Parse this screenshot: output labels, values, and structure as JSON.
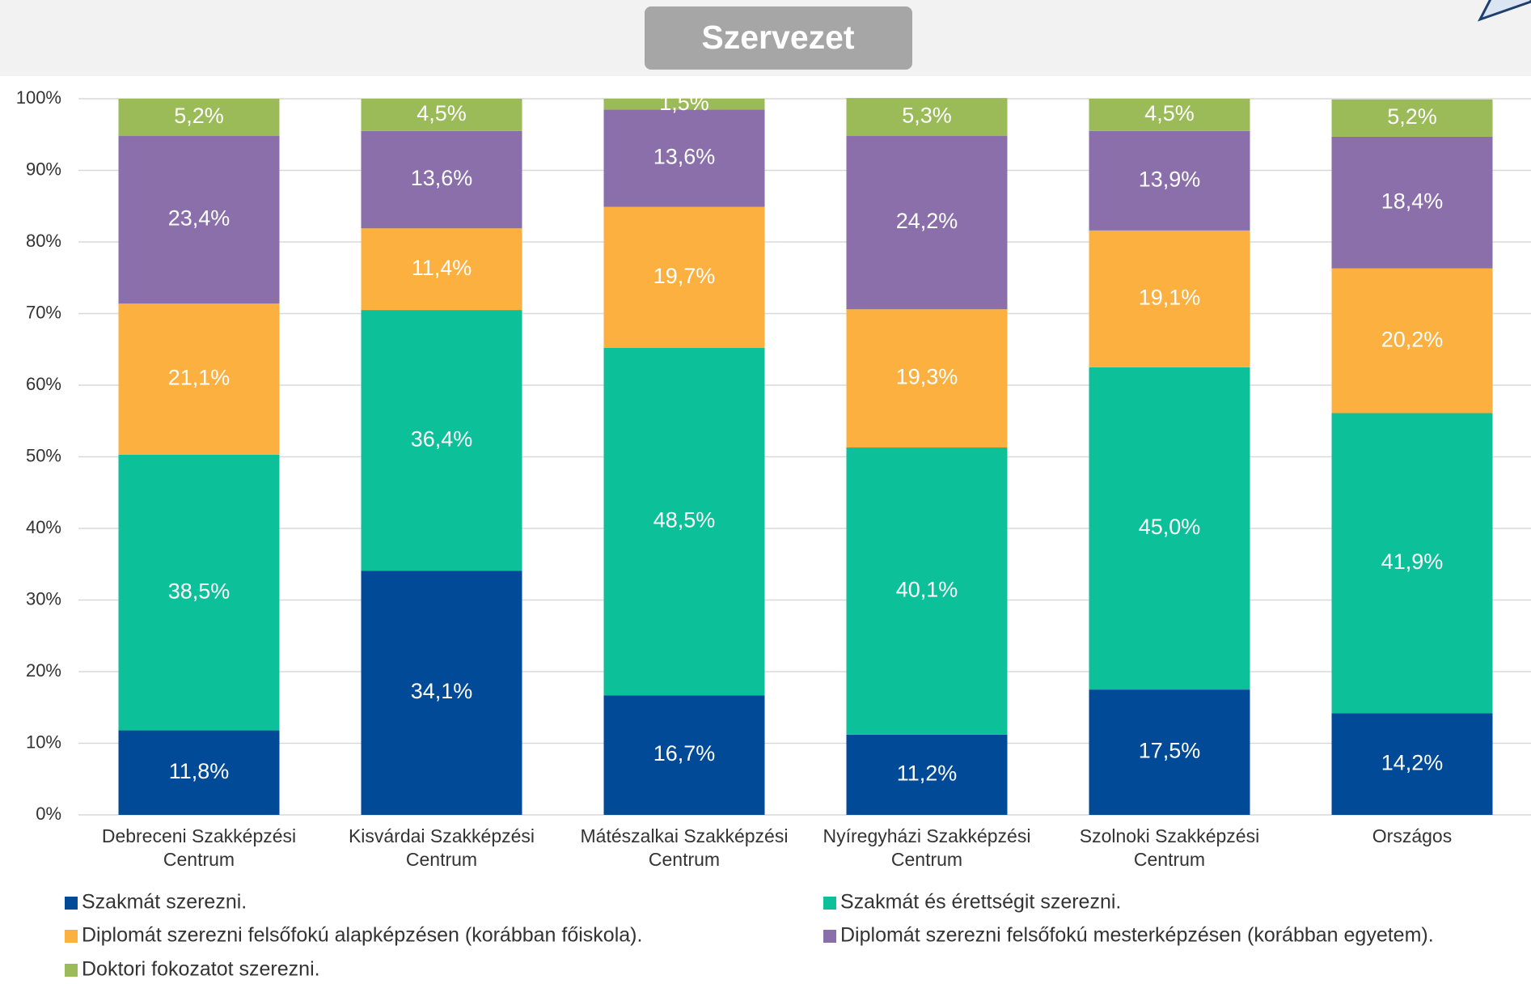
{
  "chart_data": {
    "type": "stacked_bar",
    "title": "Szervezet",
    "categories": [
      "Debreceni Szakképzési Centrum",
      "Kisvárdai Szakképzési Centrum",
      "Mátészalkai Szakképzési Centrum",
      "Nyíregyházi Szakképzési Centrum",
      "Szolnoki Szakképzési Centrum",
      "Országos"
    ],
    "series": [
      {
        "name": "Szakmát szerezni.",
        "color": "#004a98",
        "values": [
          11.8,
          34.1,
          16.7,
          11.2,
          17.5,
          14.2
        ],
        "value_labels": [
          "11,8%",
          "34,1%",
          "16,7%",
          "11,2%",
          "17,5%",
          "14,2%"
        ]
      },
      {
        "name": "Szakmát és érettségit szerezni.",
        "color": "#0cc09a",
        "values": [
          38.5,
          36.4,
          48.5,
          40.1,
          45.0,
          41.9
        ],
        "value_labels": [
          "38,5%",
          "36,4%",
          "48,5%",
          "40,1%",
          "45,0%",
          "41,9%"
        ]
      },
      {
        "name": "Diplomát szerezni felsőfokú alapképzésen (korábban főiskola).",
        "color": "#fbb040",
        "values": [
          21.1,
          11.4,
          19.7,
          19.3,
          19.1,
          20.2
        ],
        "value_labels": [
          "21,1%",
          "11,4%",
          "19,7%",
          "19,3%",
          "19,1%",
          "20,2%"
        ]
      },
      {
        "name": "Diplomát szerezni felsőfokú mesterképzésen (korábban egyetem).",
        "color": "#8a6fab",
        "values": [
          23.4,
          13.6,
          13.6,
          24.2,
          13.9,
          18.4
        ],
        "value_labels": [
          "23,4%",
          "13,6%",
          "13,6%",
          "24,2%",
          "13,9%",
          "18,4%"
        ]
      },
      {
        "name": "Doktori fokozatot szerezni.",
        "color": "#9bbb59",
        "values": [
          5.2,
          4.5,
          1.5,
          5.3,
          4.5,
          5.2
        ],
        "value_labels": [
          "5,2%",
          "4,5%",
          "1,5%",
          "5,3%",
          "4,5%",
          "5,2%"
        ]
      }
    ],
    "ylim": [
      0,
      100
    ],
    "yticks": [
      {
        "value": 0,
        "label": "0%"
      },
      {
        "value": 10,
        "label": "10%"
      },
      {
        "value": 20,
        "label": "20%"
      },
      {
        "value": 30,
        "label": "30%"
      },
      {
        "value": 40,
        "label": "40%"
      },
      {
        "value": 50,
        "label": "50%"
      },
      {
        "value": 60,
        "label": "60%"
      },
      {
        "value": 70,
        "label": "70%"
      },
      {
        "value": 80,
        "label": "80%"
      },
      {
        "value": 90,
        "label": "90%"
      },
      {
        "value": 100,
        "label": "100%"
      }
    ],
    "grid": true,
    "legend": "bottom"
  }
}
